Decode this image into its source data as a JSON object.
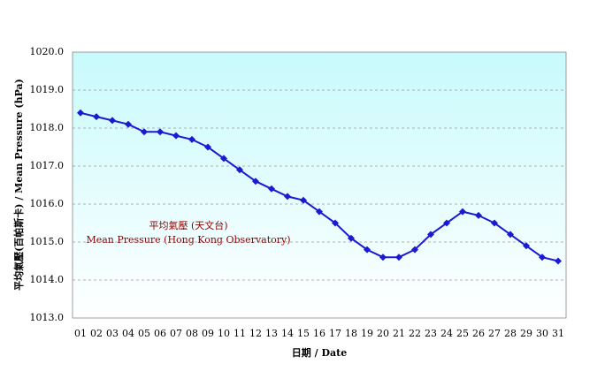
{
  "chart_data": {
    "type": "line",
    "y_label": "平均氣壓(百帕斯卡) / Mean Pressure (hPa)",
    "x_label": "日期 / Date",
    "annotation": "平均氣壓 (天文台)",
    "categories": [
      "01",
      "02",
      "03",
      "04",
      "05",
      "06",
      "07",
      "08",
      "09",
      "10",
      "11",
      "12",
      "13",
      "14",
      "15",
      "16",
      "17",
      "18",
      "19",
      "20",
      "21",
      "22",
      "23",
      "24",
      "25",
      "26",
      "27",
      "28",
      "29",
      "30",
      "31"
    ],
    "series": [
      {
        "name": "Mean Pressure (Hong Kong Observatory)",
        "color": "#1a1ad0",
        "values": [
          1018.4,
          1018.3,
          1018.2,
          1018.1,
          1017.9,
          1017.9,
          1017.8,
          1017.7,
          1017.5,
          1017.2,
          1016.9,
          1016.6,
          1016.4,
          1016.2,
          1016.1,
          1015.8,
          1015.5,
          1015.1,
          1014.8,
          1014.6,
          1014.6,
          1014.8,
          1015.2,
          1015.5,
          1015.8,
          1015.7,
          1015.5,
          1015.2,
          1014.9,
          1014.6,
          1014.5
        ]
      }
    ],
    "ylim": [
      1013,
      1020
    ],
    "yticks": [
      {
        "value": 1013,
        "label": "1013.0"
      },
      {
        "value": 1014,
        "label": "1014.0"
      },
      {
        "value": 1015,
        "label": "1015.0"
      },
      {
        "value": 1016,
        "label": "1016.0"
      },
      {
        "value": 1017,
        "label": "1017.0"
      },
      {
        "value": 1018,
        "label": "1018.0"
      },
      {
        "value": 1019,
        "label": "1019.0"
      },
      {
        "value": 1020,
        "label": "1020.0"
      }
    ],
    "grid": true
  }
}
